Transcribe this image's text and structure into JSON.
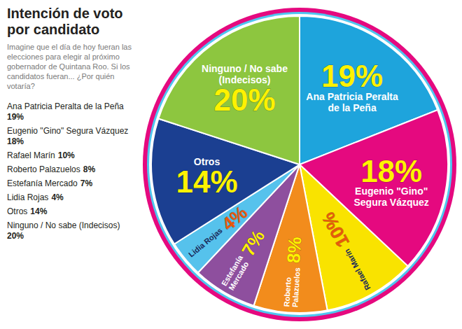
{
  "chart_data": {
    "type": "pie",
    "title": "Intención de voto por candidato",
    "subtitle": "Imagine que el día de hoy fueran las elecciones para elegir al próximo gobernador de Quintana Roo. Si los candidatos fueran... ¿Por quién votaría?",
    "categories": [
      "Ana Patricia Peralta de la Peña",
      "Eugenio \"Gino\" Segura Vázquez",
      "Rafael Marín",
      "Roberto Palazuelos",
      "Estefanía Mercado",
      "Lidia Rojas",
      "Otros",
      "Ninguno / No sabe (Indecisos)"
    ],
    "values": [
      19,
      18,
      10,
      8,
      7,
      4,
      14,
      20
    ],
    "value_labels": [
      "19%",
      "18%",
      "10%",
      "8%",
      "7%",
      "4%",
      "14%",
      "20%"
    ],
    "colors": [
      "#1ea4dc",
      "#e5097f",
      "#f9e300",
      "#f28c1c",
      "#8e4f9e",
      "#56c2ec",
      "#1b3f91",
      "#8dc63f"
    ],
    "data_labels": true
  }
}
